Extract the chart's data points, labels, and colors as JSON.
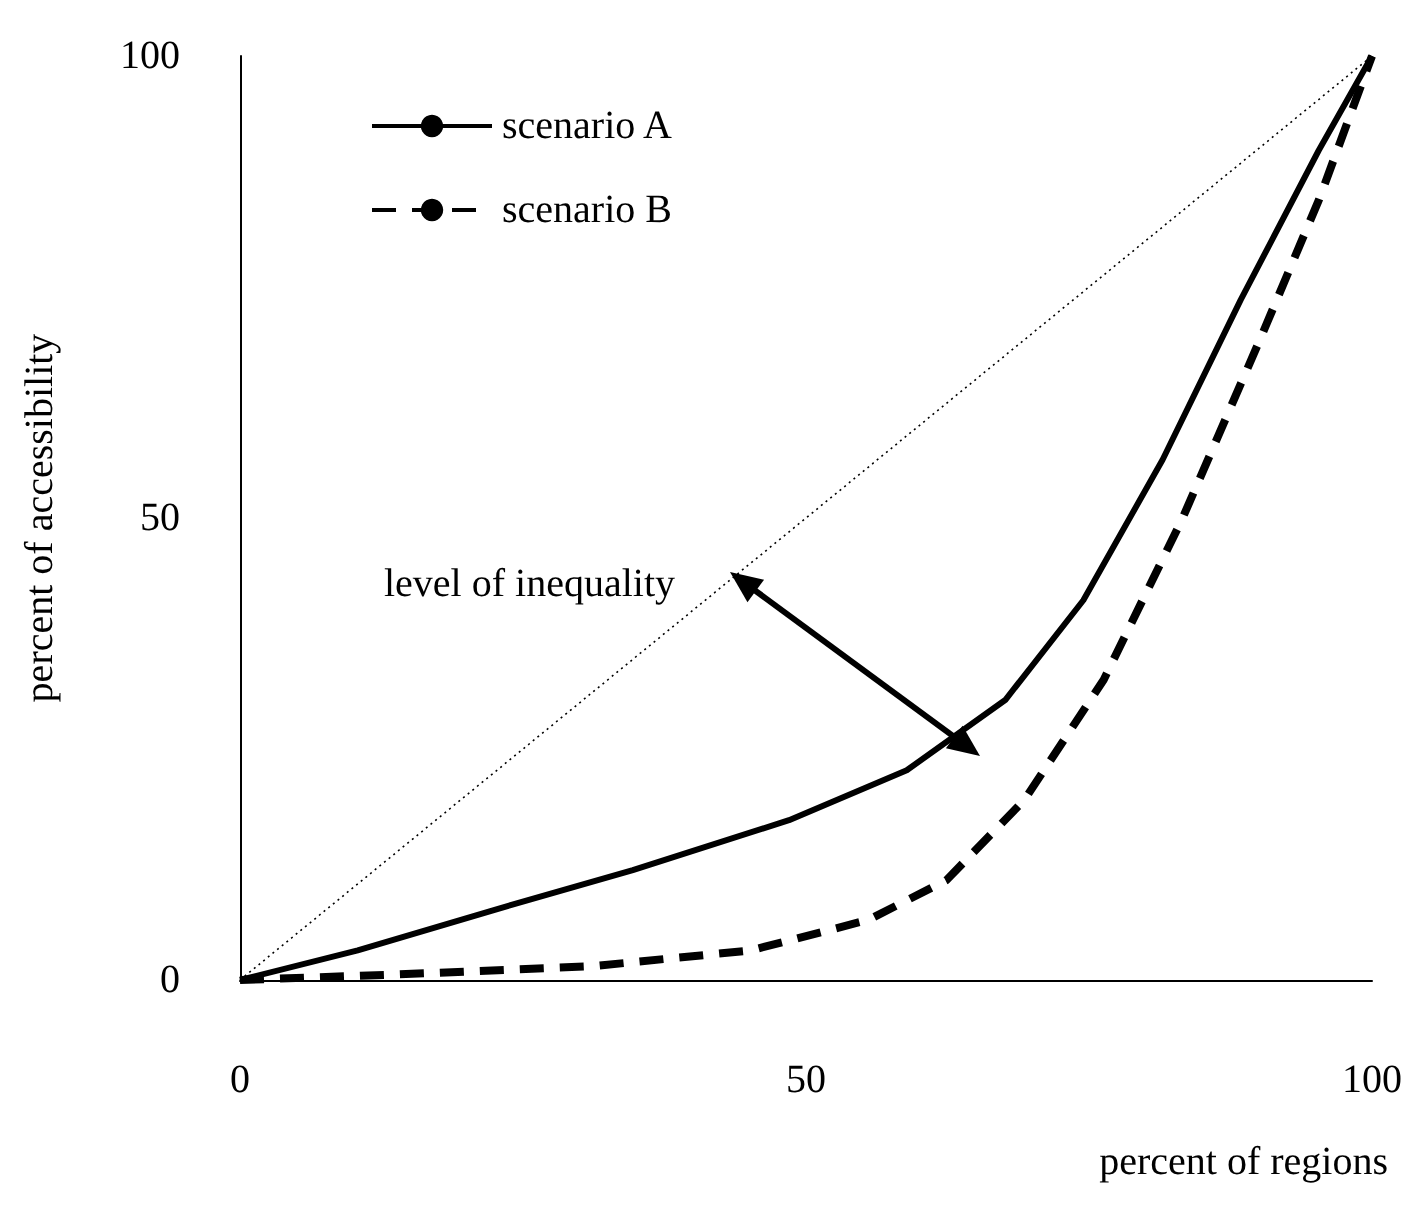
{
  "chart_data": {
    "type": "line",
    "xlabel": "percent of regions",
    "ylabel": "percent of accessibility",
    "xlim": [
      0,
      100
    ],
    "ylim": [
      0,
      100
    ],
    "xticks": [
      0,
      50,
      100
    ],
    "yticks": [
      0,
      50,
      100
    ],
    "legend": "top left",
    "marker": "none",
    "annotations": [
      "level of inequality"
    ],
    "series": [
      {
        "name": "scenario A",
        "color": "#000000",
        "line_style": "solid",
        "x": [
          0,
          10.4,
          22.5,
          34.7,
          48.5,
          58.9,
          67.6,
          74.5,
          81.5,
          88.4,
          95.3,
          100
        ],
        "values": [
          0,
          3.2,
          7.6,
          11.9,
          17.3,
          22.7,
          30.3,
          41.1,
          56.3,
          73.6,
          89.8,
          100
        ]
      },
      {
        "name": "scenario B",
        "color": "#000000",
        "line_style": "dashed",
        "x": [
          0,
          13.9,
          31.2,
          45.1,
          55.5,
          62.4,
          69.3,
          76.3,
          83.2,
          90.1,
          95.3,
          100
        ],
        "values": [
          0,
          0.6,
          1.5,
          3.2,
          6.5,
          10.8,
          19.5,
          32.5,
          49.8,
          69.3,
          84.4,
          100
        ]
      },
      {
        "color": "#000000",
        "line_style": "dotted",
        "x": [
          0,
          100
        ],
        "values": [
          0,
          100
        ]
      }
    ]
  }
}
